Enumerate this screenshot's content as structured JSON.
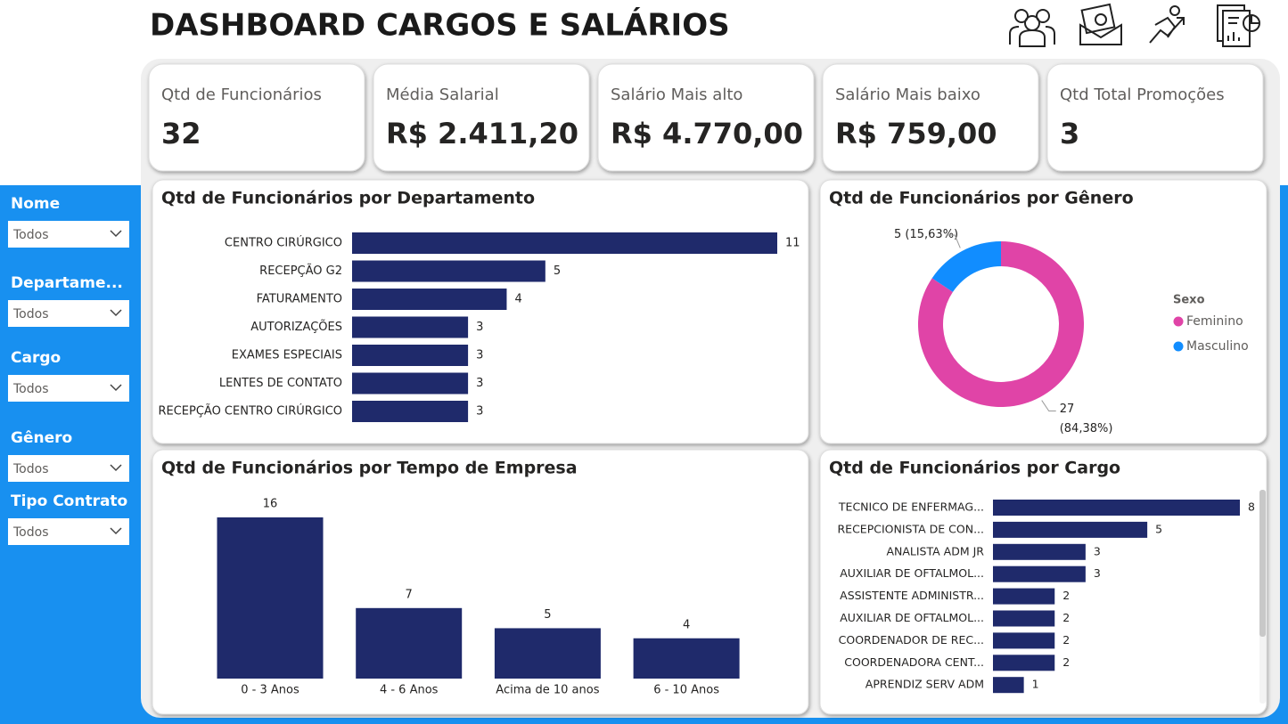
{
  "header": {
    "title": "DASHBOARD CARGOS E SALÁRIOS"
  },
  "kpis": [
    {
      "label": "Qtd de Funcionários",
      "value": "32"
    },
    {
      "label": "Média Salarial",
      "value": "R$ 2.411,20"
    },
    {
      "label": "Salário Mais alto",
      "value": "R$ 4.770,00"
    },
    {
      "label": "Salário Mais baixo",
      "value": "R$ 759,00"
    },
    {
      "label": "Qtd Total Promoções",
      "value": "3"
    }
  ],
  "filters": [
    {
      "label": "Nome",
      "value": "Todos"
    },
    {
      "label": "Departame...",
      "value": "Todos"
    },
    {
      "label": "Cargo",
      "value": "Todos"
    },
    {
      "label": "Gênero",
      "value": "Todos"
    },
    {
      "label": "Tipo Contrato",
      "value": "Todos"
    }
  ],
  "chart_data": [
    {
      "type": "hbar",
      "title": "Qtd de Funcionários por Departamento",
      "categories": [
        "CENTRO CIRÚRGICO",
        "RECEPÇÃO G2",
        "FATURAMENTO",
        "AUTORIZAÇÕES",
        "EXAMES ESPECIAIS",
        "LENTES DE CONTATO",
        "RECEPÇÃO CENTRO CIRÚRGICO"
      ],
      "values": [
        11,
        5,
        4,
        3,
        3,
        3,
        3
      ],
      "color": "#1f2a6b"
    },
    {
      "type": "donut",
      "title": "Qtd de Funcionários por Gênero",
      "legend_title": "Sexo",
      "categories": [
        "Feminino",
        "Masculino"
      ],
      "values": [
        27,
        5
      ],
      "value_labels": [
        "27 (84,38%)",
        "5 (15,63%)"
      ],
      "colors": [
        "#e044a7",
        "#118dff"
      ]
    },
    {
      "type": "bar",
      "title": "Qtd de Funcionários por Tempo de Empresa",
      "categories": [
        "0 - 3 Anos",
        "4 - 6 Anos",
        "Acima de 10 anos",
        "6 - 10 Anos"
      ],
      "values": [
        16,
        7,
        5,
        4
      ],
      "color": "#1f2a6b"
    },
    {
      "type": "hbar",
      "title": "Qtd de Funcionários por Cargo",
      "categories": [
        "TECNICO DE ENFERMAG...",
        "RECEPCIONISTA DE CON...",
        "ANALISTA ADM JR",
        "AUXILIAR DE OFTALMOL...",
        "ASSISTENTE ADMINISTR...",
        "AUXILIAR DE OFTALMOL...",
        "COORDENADOR DE REC...",
        "COORDENADORA CENT...",
        "APRENDIZ SERV ADM"
      ],
      "values": [
        8,
        5,
        3,
        3,
        2,
        2,
        2,
        2,
        1
      ],
      "color": "#1f2a6b"
    }
  ]
}
